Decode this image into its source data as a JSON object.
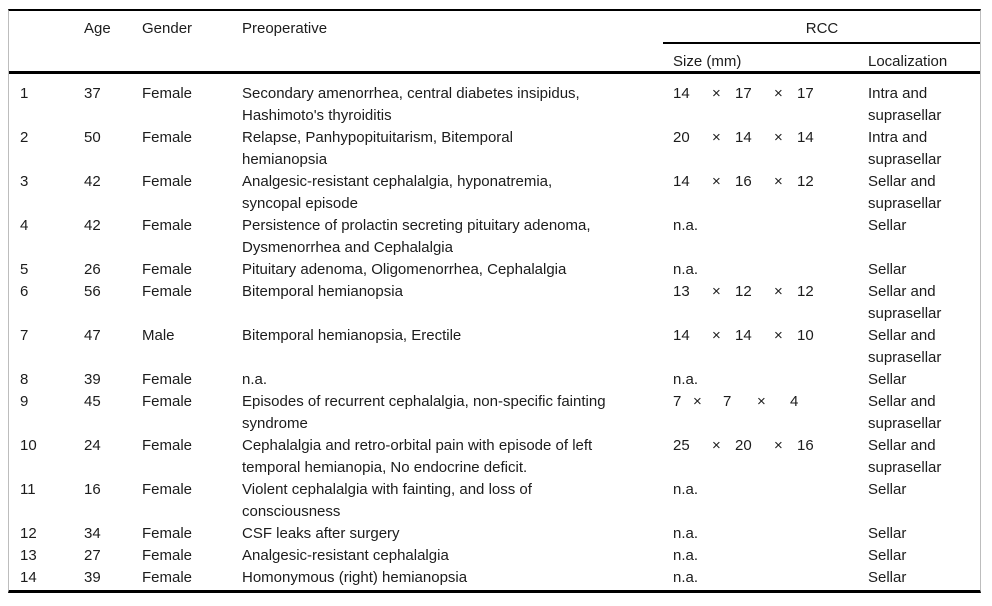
{
  "table": {
    "headers": {
      "id": "",
      "age": "Age",
      "gender": "Gender",
      "preoperative": "Preoperative",
      "rcc": "RCC",
      "size": "Size (mm)",
      "localization": "Localization"
    },
    "rows": [
      {
        "id": "1",
        "age": "37",
        "gender": "Female",
        "preoperative": [
          "Secondary amenorrhea, central diabetes insipidus,",
          "Hashimoto's thyroiditis"
        ],
        "size": [
          "14",
          "×",
          "17",
          "×",
          "17"
        ],
        "localization": [
          "Intra and",
          "suprasellar"
        ]
      },
      {
        "id": "2",
        "age": "50",
        "gender": "Female",
        "preoperative": [
          "Relapse, Panhypopituitarism, Bitemporal",
          "hemianopsia"
        ],
        "size": [
          "20",
          "×",
          "14",
          "×",
          "14"
        ],
        "localization": [
          "Intra and",
          "suprasellar"
        ]
      },
      {
        "id": "3",
        "age": "42",
        "gender": "Female",
        "preoperative": [
          "Analgesic-resistant cephalalgia, hyponatremia,",
          "syncopal episode"
        ],
        "size": [
          "14",
          "×",
          "16",
          "×",
          "12"
        ],
        "localization": [
          "Sellar and",
          "suprasellar"
        ]
      },
      {
        "id": "4",
        "age": "42",
        "gender": "Female",
        "preoperative": [
          "Persistence of prolactin secreting pituitary adenoma,",
          "Dysmenorrhea and Cephalalgia"
        ],
        "size": [
          "n.a."
        ],
        "localization": [
          "Sellar"
        ]
      },
      {
        "id": "5",
        "age": "26",
        "gender": "Female",
        "preoperative": [
          "Pituitary adenoma, Oligomenorrhea, Cephalalgia"
        ],
        "size": [
          "n.a."
        ],
        "localization": [
          "Sellar"
        ]
      },
      {
        "id": "6",
        "age": "56",
        "gender": "Female",
        "preoperative": [
          "Bitemporal hemianopsia"
        ],
        "size": [
          "13",
          "×",
          "12",
          "×",
          "12"
        ],
        "localization": [
          "Sellar and",
          "suprasellar"
        ]
      },
      {
        "id": "7",
        "age": "47",
        "gender": "Male",
        "preoperative": [
          "Bitemporal hemianopsia, Erectile"
        ],
        "size": [
          "14",
          "×",
          "14",
          "×",
          "10"
        ],
        "localization": [
          "Sellar and",
          "suprasellar"
        ]
      },
      {
        "id": "8",
        "age": "39",
        "gender": "Female",
        "preoperative": [
          "n.a."
        ],
        "size": [
          "n.a."
        ],
        "localization": [
          "Sellar"
        ]
      },
      {
        "id": "9",
        "age": "45",
        "gender": "Female",
        "preoperative": [
          "Episodes of recurrent cephalalgia, non-specific fainting",
          "syndrome"
        ],
        "size": [
          "7",
          "×",
          "7",
          "×",
          "4"
        ],
        "localization": [
          "Sellar and",
          "suprasellar"
        ]
      },
      {
        "id": "10",
        "age": "24",
        "gender": "Female",
        "preoperative": [
          "Cephalalgia and retro-orbital pain with episode of left",
          "temporal hemianopia, No endocrine deficit."
        ],
        "size": [
          "25",
          "×",
          "20",
          "×",
          "16"
        ],
        "localization": [
          "Sellar and",
          "suprasellar"
        ]
      },
      {
        "id": "11",
        "age": "16",
        "gender": "Female",
        "preoperative": [
          "Violent cephalalgia with fainting, and loss of",
          "consciousness"
        ],
        "size": [
          "n.a."
        ],
        "localization": [
          "Sellar"
        ]
      },
      {
        "id": "12",
        "age": "34",
        "gender": "Female",
        "preoperative": [
          "CSF leaks after surgery"
        ],
        "size": [
          "n.a."
        ],
        "localization": [
          "Sellar"
        ]
      },
      {
        "id": "13",
        "age": "27",
        "gender": "Female",
        "preoperative": [
          "Analgesic-resistant cephalalgia"
        ],
        "size": [
          "n.a."
        ],
        "localization": [
          "Sellar"
        ]
      },
      {
        "id": "14",
        "age": "39",
        "gender": "Female",
        "preoperative": [
          "Homonymous (right) hemianopsia"
        ],
        "size": [
          "n.a."
        ],
        "localization": [
          "Sellar"
        ]
      }
    ]
  },
  "colors": {
    "text": "#1c1c1c",
    "rule": "#000000",
    "frame_edge": "#bdbdbd",
    "background": "#ffffff"
  }
}
